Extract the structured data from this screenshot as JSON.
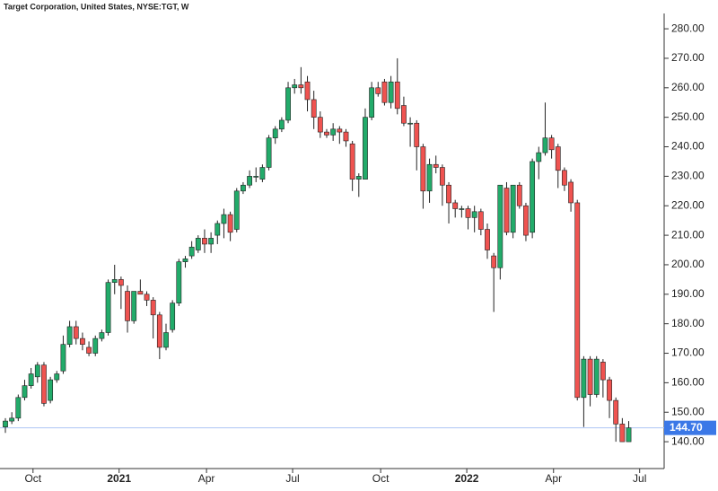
{
  "chart_data": {
    "type": "candlestick",
    "title": "Target Corporation, United States, NYSE:TGT, W",
    "up_color": "#22ab6a",
    "down_color": "#ef5350",
    "series": {
      "open": [
        145,
        147,
        148,
        155,
        159,
        162,
        166,
        154,
        161,
        164,
        173,
        179,
        175,
        172,
        170,
        175,
        177,
        194,
        195,
        191,
        181,
        191,
        190,
        188,
        183,
        172,
        178,
        187,
        201,
        203,
        205,
        209,
        207,
        210,
        214,
        217,
        212,
        225,
        227,
        230,
        229,
        233,
        243,
        246,
        249,
        260,
        261,
        262,
        256,
        250,
        245,
        244,
        246,
        245,
        241,
        229,
        229,
        250,
        260,
        262,
        255,
        262,
        254,
        248,
        248,
        240,
        225,
        234,
        233,
        227,
        221,
        219,
        219,
        216,
        218,
        212,
        203,
        199,
        226,
        211,
        227,
        220,
        211,
        235,
        238,
        243,
        240,
        232,
        228,
        221,
        155,
        168,
        156,
        167,
        161,
        154,
        146,
        140
      ],
      "high": [
        148,
        150,
        156,
        161,
        165,
        167,
        167,
        162,
        164,
        176,
        181,
        181,
        177,
        174,
        176,
        178,
        195,
        200,
        196,
        193,
        191,
        195,
        191,
        189,
        184,
        180,
        188,
        202,
        203,
        208,
        210,
        212,
        211,
        215,
        219,
        218,
        226,
        228,
        232,
        233,
        234,
        244,
        247,
        250,
        262,
        263,
        267,
        264,
        259,
        252,
        246,
        248,
        247,
        246,
        242,
        231,
        253,
        262,
        262,
        263,
        264,
        270,
        257,
        250,
        249,
        241,
        236,
        237,
        234,
        228,
        222,
        220,
        220,
        220,
        219,
        214,
        204,
        227,
        228,
        227,
        228,
        221,
        236,
        240,
        255,
        244,
        241,
        233,
        229,
        222,
        169,
        169,
        169,
        168,
        162,
        155,
        148,
        147
      ],
      "low": [
        143,
        146,
        147,
        154,
        158,
        160,
        152,
        153,
        160,
        163,
        172,
        173,
        171,
        169,
        169,
        174,
        176,
        190,
        185,
        177,
        180,
        190,
        186,
        175,
        168,
        171,
        177,
        186,
        199,
        202,
        204,
        204,
        204,
        207,
        209,
        208,
        211,
        224,
        226,
        228,
        228,
        232,
        241,
        245,
        248,
        258,
        258,
        252,
        246,
        243,
        243,
        242,
        241,
        240,
        225,
        223,
        229,
        249,
        257,
        254,
        253,
        251,
        247,
        240,
        232,
        219,
        221,
        231,
        220,
        214,
        216,
        216,
        212,
        211,
        210,
        202,
        184,
        195,
        210,
        209,
        219,
        208,
        209,
        229,
        237,
        236,
        226,
        225,
        218,
        154,
        145,
        152,
        155,
        155,
        148,
        140,
        140,
        140
      ],
      "close": [
        147,
        148,
        155,
        159,
        163,
        166,
        153,
        161,
        163,
        173,
        179,
        175,
        173,
        170,
        175,
        177,
        194,
        195,
        193,
        181,
        191,
        190,
        188,
        183,
        172,
        177,
        187,
        201,
        202,
        206,
        209,
        207,
        209,
        214,
        217,
        211,
        225,
        227,
        230,
        230,
        233,
        243,
        246,
        249,
        260,
        261,
        260,
        256,
        250,
        245,
        244,
        246,
        245,
        242,
        229,
        230,
        250,
        260,
        258,
        255,
        262,
        253,
        248,
        248,
        240,
        225,
        234,
        233,
        227,
        221,
        219,
        219,
        216,
        218,
        212,
        205,
        199,
        227,
        211,
        227,
        220,
        210,
        235,
        238,
        243,
        239,
        232,
        227,
        221,
        155,
        168,
        156,
        168,
        161,
        154,
        146,
        140,
        144.7
      ]
    },
    "xticks": [
      {
        "value": 4.3,
        "label": "Oct"
      },
      {
        "value": 17.7,
        "label": "2021"
      },
      {
        "value": 31.3,
        "label": "Apr"
      },
      {
        "value": 44.7,
        "label": "Jul"
      },
      {
        "value": 58.4,
        "label": "Oct"
      },
      {
        "value": 71.8,
        "label": "2022"
      },
      {
        "value": 85.3,
        "label": "Apr"
      },
      {
        "value": 98.7,
        "label": "Jul"
      }
    ],
    "ylim": [
      130.9,
      285.2
    ],
    "yticks": [
      {
        "value": 140,
        "label": "140.00"
      },
      {
        "value": 150,
        "label": "150.00"
      },
      {
        "value": 160,
        "label": "160.00"
      },
      {
        "value": 170,
        "label": "170.00"
      },
      {
        "value": 180,
        "label": "180.00"
      },
      {
        "value": 190,
        "label": "190.00"
      },
      {
        "value": 200,
        "label": "200.00"
      },
      {
        "value": 210,
        "label": "210.00"
      },
      {
        "value": 220,
        "label": "220.00"
      },
      {
        "value": 230,
        "label": "230.00"
      },
      {
        "value": 240,
        "label": "240.00"
      },
      {
        "value": 250,
        "label": "250.00"
      },
      {
        "value": 260,
        "label": "260.00"
      },
      {
        "value": 270,
        "label": "270.00"
      },
      {
        "value": 280,
        "label": "280.00"
      }
    ],
    "last_price": {
      "value": 144.7,
      "label": "144.70",
      "color": "#3b78e7"
    }
  }
}
